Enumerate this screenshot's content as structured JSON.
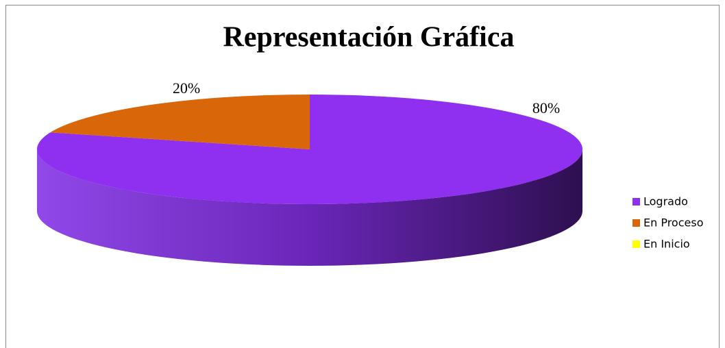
{
  "chart_data": {
    "type": "pie",
    "title": "Representación Gráfica",
    "categories": [
      "Logrado",
      "En Proceso",
      "En Inicio"
    ],
    "values": [
      80,
      20,
      0
    ],
    "value_labels": [
      "80%",
      "20%",
      null
    ],
    "colors": [
      "#8f2ff0",
      "#d9670a",
      "#ffff00"
    ],
    "legend": "right"
  }
}
